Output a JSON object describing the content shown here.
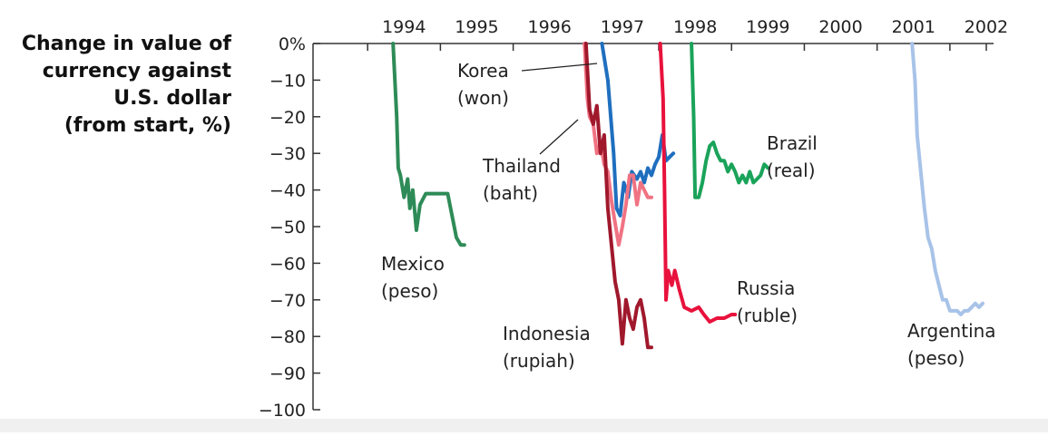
{
  "chart_data": {
    "type": "line",
    "title": "",
    "ylabel": "Change in value of\ncurrency against\nU.S. dollar\n(from start, %)",
    "xlabel": "",
    "x_ticks": [
      "1994",
      "1995",
      "1996",
      "1997",
      "1998",
      "1999",
      "2000",
      "2001",
      "2002"
    ],
    "y_ticks": [
      "0%",
      "−10",
      "−20",
      "−30",
      "−40",
      "−50",
      "−60",
      "−70",
      "−80",
      "−90",
      "−100"
    ],
    "xlim": [
      1993.25,
      2002.6
    ],
    "ylim": [
      -100,
      0
    ],
    "grid": false,
    "legend": "none (direct labels)",
    "series": [
      {
        "name": "Mexico",
        "sublabel": "(peso)",
        "color": "#2e8b57",
        "x": [
          1994.35,
          1994.4,
          1994.42,
          1994.45,
          1994.5,
          1994.55,
          1994.58,
          1994.62,
          1994.67,
          1994.72,
          1994.8,
          1994.9,
          1995.0,
          1995.1,
          1995.17,
          1995.22,
          1995.28,
          1995.33
        ],
        "y": [
          0,
          -20,
          -34,
          -36,
          -42,
          -37,
          -45,
          -40,
          -51,
          -44,
          -41,
          -41,
          -41,
          -41,
          -48,
          -53,
          -55,
          -55
        ]
      },
      {
        "name": "Korea",
        "sublabel": "(won)",
        "color": "#1f6fbf",
        "x": [
          1997.22,
          1997.3,
          1997.38,
          1997.42,
          1997.47,
          1997.52,
          1997.58,
          1997.63,
          1997.7,
          1997.75,
          1997.8,
          1997.85,
          1997.9,
          1997.95,
          1998.0,
          1998.05,
          1998.1,
          1998.15,
          1998.2
        ],
        "y": [
          0,
          -10,
          -30,
          -45,
          -47,
          -38,
          -42,
          -35,
          -37,
          -35,
          -38,
          -34,
          -36,
          -33,
          -31,
          -25,
          -32,
          -31,
          -30
        ]
      },
      {
        "name": "Thailand",
        "sublabel": "(baht)",
        "color": "#f07383",
        "x": [
          1996.98,
          1997.02,
          1997.05,
          1997.1,
          1997.15,
          1997.2,
          1997.25,
          1997.3,
          1997.35,
          1997.4,
          1997.45,
          1997.5,
          1997.55,
          1997.6,
          1997.65,
          1997.7,
          1997.75,
          1997.8,
          1997.85,
          1997.9
        ],
        "y": [
          0,
          -15,
          -20,
          -22,
          -30,
          -27,
          -33,
          -35,
          -43,
          -49,
          -55,
          -50,
          -44,
          -36,
          -36,
          -44,
          -38,
          -40,
          -42,
          -42
        ]
      },
      {
        "name": "Indonesia",
        "sublabel": "(rupiah)",
        "color": "#a0182c",
        "x": [
          1997.0,
          1997.05,
          1997.1,
          1997.15,
          1997.2,
          1997.25,
          1997.3,
          1997.35,
          1997.4,
          1997.45,
          1997.5,
          1997.55,
          1997.6,
          1997.65,
          1997.7,
          1997.75,
          1997.8,
          1997.85,
          1997.9
        ],
        "y": [
          0,
          -18,
          -22,
          -17,
          -30,
          -25,
          -45,
          -55,
          -65,
          -70,
          -82,
          -70,
          -75,
          -78,
          -72,
          -70,
          -75,
          -83,
          -83
        ]
      },
      {
        "name": "Russia",
        "sublabel": "(ruble)",
        "color": "#e8123c",
        "x": [
          1998.02,
          1998.06,
          1998.08,
          1998.1,
          1998.13,
          1998.18,
          1998.22,
          1998.28,
          1998.35,
          1998.45,
          1998.55,
          1998.62,
          1998.7,
          1998.8,
          1998.9,
          1999.0,
          1999.05
        ],
        "y": [
          0,
          -15,
          -40,
          -70,
          -62,
          -66,
          -62,
          -67,
          -72,
          -73,
          -72,
          -74,
          -76,
          -75,
          -75,
          -74,
          -74
        ]
      },
      {
        "name": "Brazil",
        "sublabel": "(real)",
        "color": "#1aa35a",
        "x": [
          1998.45,
          1998.48,
          1998.5,
          1998.55,
          1998.6,
          1998.65,
          1998.7,
          1998.75,
          1998.8,
          1998.85,
          1998.9,
          1998.95,
          1999.0,
          1999.05,
          1999.1,
          1999.15,
          1999.2,
          1999.25,
          1999.3,
          1999.35,
          1999.4,
          1999.45,
          1999.5
        ],
        "y": [
          0,
          -20,
          -42,
          -42,
          -38,
          -32,
          -28,
          -27,
          -30,
          -32,
          -32,
          -35,
          -33,
          -35,
          -38,
          -36,
          -38,
          -35,
          -38,
          -37,
          -36,
          -33,
          -34
        ]
      },
      {
        "name": "Argentina",
        "sublabel": "(peso)",
        "color": "#a8c3e8",
        "x": [
          2001.48,
          2001.52,
          2001.55,
          2001.6,
          2001.65,
          2001.7,
          2001.75,
          2001.8,
          2001.85,
          2001.9,
          2001.95,
          2002.0,
          2002.05,
          2002.1,
          2002.15,
          2002.2,
          2002.25,
          2002.3,
          2002.35,
          2002.4,
          2002.45
        ],
        "y": [
          0,
          -10,
          -25,
          -35,
          -45,
          -53,
          -56,
          -62,
          -66,
          -70,
          -70,
          -73,
          -73,
          -73,
          -74,
          -73,
          -73,
          -72,
          -71,
          -72,
          -71
        ]
      }
    ]
  }
}
